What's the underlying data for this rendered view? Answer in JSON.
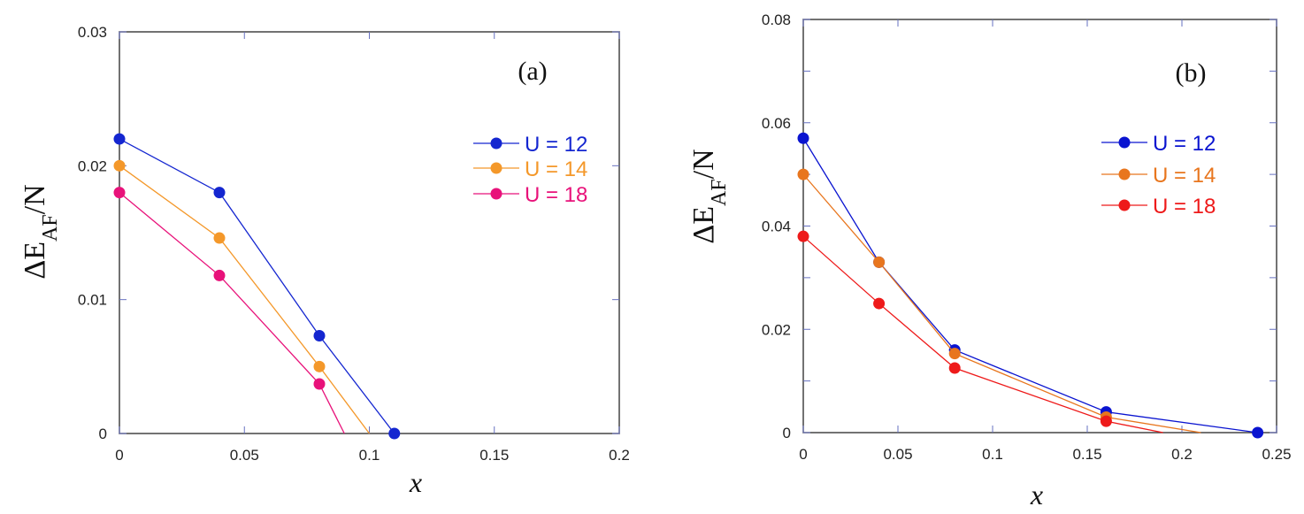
{
  "chart_data": [
    {
      "type": "line",
      "panel_label": "(a)",
      "xlabel": "x",
      "ylabel_main": "ΔE",
      "ylabel_sub": "AF",
      "ylabel_tail": "/N",
      "xlim": [
        0,
        0.2
      ],
      "ylim": [
        0,
        0.03
      ],
      "xticks": [
        "0",
        "0.05",
        "0.1",
        "0.15",
        "0.2"
      ],
      "xtick_values": [
        0,
        0.05,
        0.1,
        0.15,
        0.2
      ],
      "yticks": [
        "0",
        "0.01",
        "0.02",
        "0.03"
      ],
      "ytick_values": [
        0,
        0.01,
        0.02,
        0.03
      ],
      "legend_position": "right",
      "series": [
        {
          "name": "U = 12",
          "color": "#1426d0",
          "x": [
            0,
            0.04,
            0.08,
            0.11
          ],
          "y": [
            0.022,
            0.018,
            0.0073,
            0
          ],
          "line_end": null
        },
        {
          "name": "U = 14",
          "color": "#f4982a",
          "x": [
            0,
            0.04,
            0.08
          ],
          "y": [
            0.02,
            0.0146,
            0.005
          ],
          "line_end": [
            0.1,
            0
          ]
        },
        {
          "name": "U = 18",
          "color": "#e8127a",
          "x": [
            0,
            0.04,
            0.08
          ],
          "y": [
            0.018,
            0.0118,
            0.0037
          ],
          "line_end": [
            0.09,
            0
          ]
        }
      ]
    },
    {
      "type": "line",
      "panel_label": "(b)",
      "xlabel": "x",
      "ylabel_main": "ΔE",
      "ylabel_sub": "AF",
      "ylabel_tail": "/N",
      "xlim": [
        0,
        0.25
      ],
      "ylim": [
        0,
        0.08
      ],
      "xticks": [
        "0",
        "0.05",
        "0.1",
        "0.15",
        "0.2",
        "0.25"
      ],
      "xtick_values": [
        0,
        0.05,
        0.1,
        0.15,
        0.2,
        0.25
      ],
      "yticks": [
        "0",
        "0.02",
        "0.04",
        "0.06",
        "0.08"
      ],
      "ytick_values": [
        0,
        0.02,
        0.04,
        0.06,
        0.08
      ],
      "legend_position": "right",
      "series": [
        {
          "name": "U = 12",
          "color": "#0a14d0",
          "x": [
            0,
            0.04,
            0.08,
            0.16,
            0.24
          ],
          "y": [
            0.057,
            0.033,
            0.016,
            0.004,
            0
          ],
          "line_end": null
        },
        {
          "name": "U = 14",
          "color": "#e8761e",
          "x": [
            0,
            0.04,
            0.08,
            0.16
          ],
          "y": [
            0.05,
            0.033,
            0.0153,
            0.003
          ],
          "line_end": [
            0.21,
            0
          ]
        },
        {
          "name": "U = 18",
          "color": "#ee1a1a",
          "x": [
            0,
            0.04,
            0.08,
            0.16
          ],
          "y": [
            0.038,
            0.025,
            0.0125,
            0.0022
          ],
          "line_end": [
            0.19,
            0
          ]
        }
      ]
    }
  ]
}
